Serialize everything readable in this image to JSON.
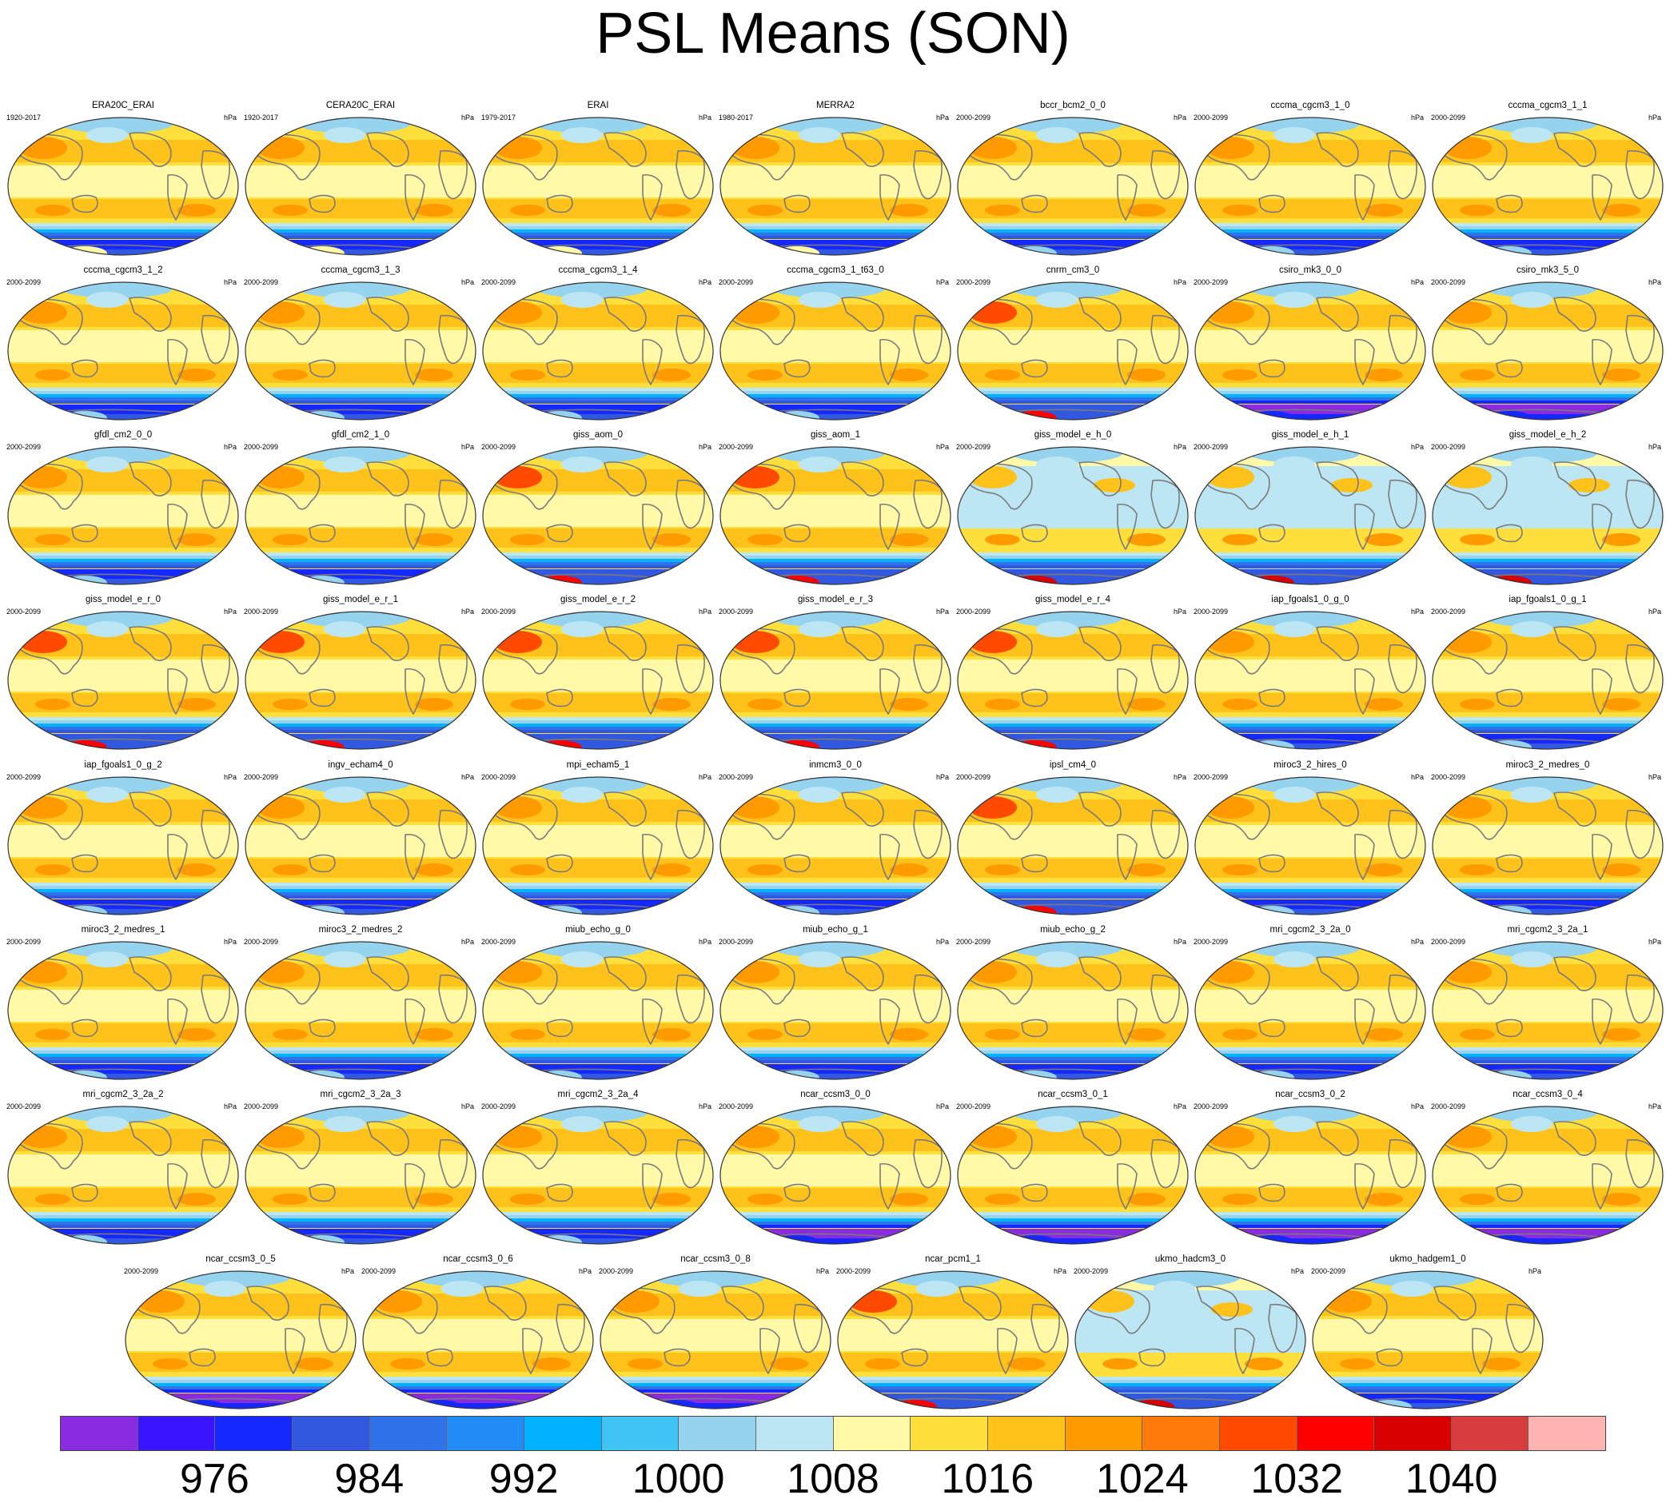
{
  "title": "PSL Means (SON)",
  "units": "hPa",
  "colorbar": {
    "colors": [
      "#8a2be2",
      "#3b14ff",
      "#1428ff",
      "#3358e0",
      "#2f73eb",
      "#228cf5",
      "#00b2ff",
      "#3fc4f5",
      "#96d3ee",
      "#bde6f5",
      "#fff9a8",
      "#ffdf3c",
      "#ffc21a",
      "#ff9a00",
      "#ff7a0a",
      "#ff4a00",
      "#ff0000",
      "#d80000",
      "#d93c3c",
      "#ffb4b4"
    ],
    "labels": [
      "976",
      "984",
      "992",
      "1000",
      "1008",
      "1016",
      "1024",
      "1032",
      "1040"
    ]
  },
  "panels": [
    {
      "name": "ERA20C_ERAI",
      "period": "1920-2017",
      "style": "obs"
    },
    {
      "name": "CERA20C_ERAI",
      "period": "1920-2017",
      "style": "obs"
    },
    {
      "name": "ERAI",
      "period": "1979-2017",
      "style": "obs"
    },
    {
      "name": "MERRA2",
      "period": "1980-2017",
      "style": "obs"
    },
    {
      "name": "bccr_bcm2_0_0",
      "period": "2000-2099",
      "style": "std"
    },
    {
      "name": "cccma_cgcm3_1_0",
      "period": "2000-2099",
      "style": "std"
    },
    {
      "name": "cccma_cgcm3_1_1",
      "period": "2000-2099",
      "style": "std"
    },
    {
      "name": "cccma_cgcm3_1_2",
      "period": "2000-2099",
      "style": "std"
    },
    {
      "name": "cccma_cgcm3_1_3",
      "period": "2000-2099",
      "style": "std"
    },
    {
      "name": "cccma_cgcm3_1_4",
      "period": "2000-2099",
      "style": "std"
    },
    {
      "name": "cccma_cgcm3_1_t63_0",
      "period": "2000-2099",
      "style": "std"
    },
    {
      "name": "cnrm_cm3_0",
      "period": "2000-2099",
      "style": "hot"
    },
    {
      "name": "csiro_mk3_0_0",
      "period": "2000-2099",
      "style": "deep"
    },
    {
      "name": "csiro_mk3_5_0",
      "period": "2000-2099",
      "style": "deep"
    },
    {
      "name": "gfdl_cm2_0_0",
      "period": "2000-2099",
      "style": "std"
    },
    {
      "name": "gfdl_cm2_1_0",
      "period": "2000-2099",
      "style": "std"
    },
    {
      "name": "giss_aom_0",
      "period": "2000-2099",
      "style": "hot"
    },
    {
      "name": "giss_aom_1",
      "period": "2000-2099",
      "style": "hot"
    },
    {
      "name": "giss_model_e_h_0",
      "period": "2000-2099",
      "style": "cool"
    },
    {
      "name": "giss_model_e_h_1",
      "period": "2000-2099",
      "style": "cool"
    },
    {
      "name": "giss_model_e_h_2",
      "period": "2000-2099",
      "style": "cool"
    },
    {
      "name": "giss_model_e_r_0",
      "period": "2000-2099",
      "style": "hot"
    },
    {
      "name": "giss_model_e_r_1",
      "period": "2000-2099",
      "style": "hot"
    },
    {
      "name": "giss_model_e_r_2",
      "period": "2000-2099",
      "style": "hot"
    },
    {
      "name": "giss_model_e_r_3",
      "period": "2000-2099",
      "style": "hot"
    },
    {
      "name": "giss_model_e_r_4",
      "period": "2000-2099",
      "style": "hot"
    },
    {
      "name": "iap_fgoals1_0_g_0",
      "period": "2000-2099",
      "style": "std"
    },
    {
      "name": "iap_fgoals1_0_g_1",
      "period": "2000-2099",
      "style": "std"
    },
    {
      "name": "iap_fgoals1_0_g_2",
      "period": "2000-2099",
      "style": "std"
    },
    {
      "name": "ingv_echam4_0",
      "period": "2000-2099",
      "style": "std"
    },
    {
      "name": "mpi_echam5_1",
      "period": "2000-2099",
      "style": "std"
    },
    {
      "name": "inmcm3_0_0",
      "period": "2000-2099",
      "style": "std"
    },
    {
      "name": "ipsl_cm4_0",
      "period": "2000-2099",
      "style": "hot"
    },
    {
      "name": "miroc3_2_hires_0",
      "period": "2000-2099",
      "style": "std"
    },
    {
      "name": "miroc3_2_medres_0",
      "period": "2000-2099",
      "style": "std"
    },
    {
      "name": "miroc3_2_medres_1",
      "period": "2000-2099",
      "style": "std"
    },
    {
      "name": "miroc3_2_medres_2",
      "period": "2000-2099",
      "style": "std"
    },
    {
      "name": "miub_echo_g_0",
      "period": "2000-2099",
      "style": "std"
    },
    {
      "name": "miub_echo_g_1",
      "period": "2000-2099",
      "style": "std"
    },
    {
      "name": "miub_echo_g_2",
      "period": "2000-2099",
      "style": "std"
    },
    {
      "name": "mri_cgcm2_3_2a_0",
      "period": "2000-2099",
      "style": "std"
    },
    {
      "name": "mri_cgcm2_3_2a_1",
      "period": "2000-2099",
      "style": "std"
    },
    {
      "name": "mri_cgcm2_3_2a_2",
      "period": "2000-2099",
      "style": "std"
    },
    {
      "name": "mri_cgcm2_3_2a_3",
      "period": "2000-2099",
      "style": "std"
    },
    {
      "name": "mri_cgcm2_3_2a_4",
      "period": "2000-2099",
      "style": "std"
    },
    {
      "name": "ncar_ccsm3_0_0",
      "period": "2000-2099",
      "style": "deep"
    },
    {
      "name": "ncar_ccsm3_0_1",
      "period": "2000-2099",
      "style": "deep"
    },
    {
      "name": "ncar_ccsm3_0_2",
      "period": "2000-2099",
      "style": "deep"
    },
    {
      "name": "ncar_ccsm3_0_4",
      "period": "2000-2099",
      "style": "deep"
    },
    {
      "name": "ncar_ccsm3_0_5",
      "period": "2000-2099",
      "style": "deep"
    },
    {
      "name": "ncar_ccsm3_0_6",
      "period": "2000-2099",
      "style": "deep"
    },
    {
      "name": "ncar_ccsm3_0_8",
      "period": "2000-2099",
      "style": "deep"
    },
    {
      "name": "ncar_pcm1_1",
      "period": "2000-2099",
      "style": "hot"
    },
    {
      "name": "ukmo_hadcm3_0",
      "period": "2000-2099",
      "style": "cool"
    },
    {
      "name": "ukmo_hadgem1_0",
      "period": "2000-2099",
      "style": "std"
    }
  ]
}
